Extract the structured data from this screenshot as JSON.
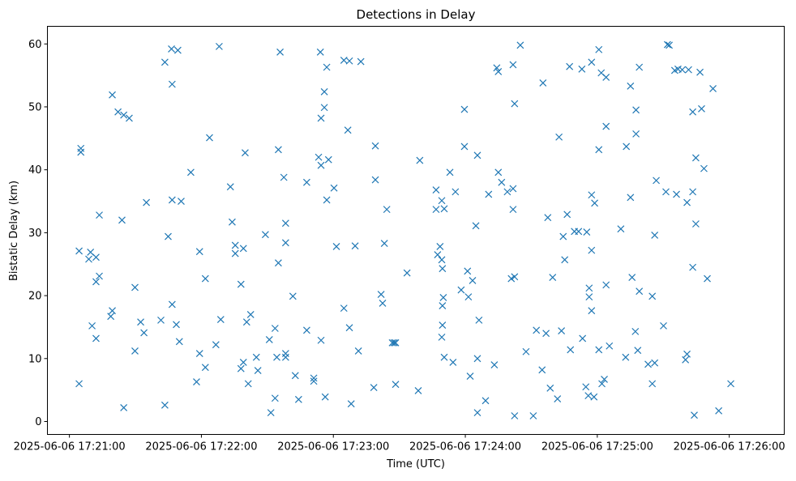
{
  "chart_data": {
    "type": "scatter",
    "title": "Detections in Delay",
    "xlabel": "Time (UTC)",
    "ylabel": "Bistatic Delay (km)",
    "x_units": "seconds after 2025-06-06 17:21:00",
    "xlim": [
      -10,
      325
    ],
    "ylim": [
      -2.06,
      62.8
    ],
    "grid": false,
    "marker": "x",
    "color": "#1f77b4",
    "x_ticks": [
      {
        "value": 0,
        "label": "2025-06-06 17:21:00"
      },
      {
        "value": 60,
        "label": "2025-06-06 17:22:00"
      },
      {
        "value": 120,
        "label": "2025-06-06 17:23:00"
      },
      {
        "value": 180,
        "label": "2025-06-06 17:24:00"
      },
      {
        "value": 240,
        "label": "2025-06-06 17:25:00"
      },
      {
        "value": 300,
        "label": "2025-06-06 17:26:00"
      }
    ],
    "y_ticks": [
      {
        "value": 0,
        "label": "0"
      },
      {
        "value": 10,
        "label": "10"
      },
      {
        "value": 20,
        "label": "20"
      },
      {
        "value": 30,
        "label": "30"
      },
      {
        "value": 40,
        "label": "40"
      },
      {
        "value": 50,
        "label": "50"
      },
      {
        "value": 60,
        "label": "60"
      }
    ],
    "points": [
      [
        4.4,
        6.0
      ],
      [
        4.4,
        27.1
      ],
      [
        5.2,
        43.4
      ],
      [
        5.2,
        42.8
      ],
      [
        8.8,
        25.8
      ],
      [
        9.6,
        26.9
      ],
      [
        10.3,
        15.2
      ],
      [
        12.1,
        26.1
      ],
      [
        12.1,
        22.2
      ],
      [
        12.1,
        13.2
      ],
      [
        13.6,
        23.1
      ],
      [
        13.6,
        32.8
      ],
      [
        18.8,
        16.7
      ],
      [
        19.5,
        17.6
      ],
      [
        19.5,
        51.9
      ],
      [
        22.1,
        49.2
      ],
      [
        24.7,
        48.7
      ],
      [
        27.2,
        48.2
      ],
      [
        23.9,
        32.0
      ],
      [
        24.7,
        2.2
      ],
      [
        29.8,
        21.3
      ],
      [
        29.8,
        11.2
      ],
      [
        32.4,
        15.8
      ],
      [
        33.9,
        14.1
      ],
      [
        35.0,
        34.8
      ],
      [
        41.6,
        16.1
      ],
      [
        43.4,
        2.6
      ],
      [
        43.4,
        57.1
      ],
      [
        44.9,
        29.4
      ],
      [
        46.4,
        59.2
      ],
      [
        46.7,
        53.6
      ],
      [
        46.7,
        35.2
      ],
      [
        46.7,
        18.6
      ],
      [
        48.6,
        15.4
      ],
      [
        49.3,
        59.0
      ],
      [
        50.0,
        12.7
      ],
      [
        50.8,
        35.0
      ],
      [
        55.2,
        39.6
      ],
      [
        57.8,
        6.3
      ],
      [
        59.2,
        27.0
      ],
      [
        59.2,
        10.8
      ],
      [
        61.8,
        22.7
      ],
      [
        61.8,
        8.6
      ],
      [
        63.7,
        45.1
      ],
      [
        66.6,
        12.2
      ],
      [
        68.1,
        59.6
      ],
      [
        68.8,
        16.2
      ],
      [
        73.2,
        37.3
      ],
      [
        74.0,
        31.7
      ],
      [
        75.4,
        28.0
      ],
      [
        75.4,
        26.7
      ],
      [
        78.0,
        21.8
      ],
      [
        79.1,
        27.5
      ],
      [
        79.9,
        42.7
      ],
      [
        78.0,
        8.4
      ],
      [
        79.1,
        9.4
      ],
      [
        80.6,
        15.8
      ],
      [
        81.3,
        6.0
      ],
      [
        82.4,
        17.0
      ],
      [
        85.0,
        10.2
      ],
      [
        85.7,
        8.1
      ],
      [
        89.1,
        29.7
      ],
      [
        90.9,
        13.0
      ],
      [
        91.6,
        1.4
      ],
      [
        93.5,
        3.7
      ],
      [
        93.5,
        14.8
      ],
      [
        94.3,
        10.2
      ],
      [
        95.0,
        25.2
      ],
      [
        95.0,
        43.2
      ],
      [
        95.8,
        58.7
      ],
      [
        97.5,
        38.8
      ],
      [
        98.3,
        10.8
      ],
      [
        98.3,
        10.2
      ],
      [
        98.3,
        31.5
      ],
      [
        98.3,
        28.4
      ],
      [
        101.6,
        19.9
      ],
      [
        102.7,
        7.3
      ],
      [
        104.2,
        3.5
      ],
      [
        107.9,
        38.0
      ],
      [
        107.9,
        14.5
      ],
      [
        111.1,
        6.9
      ],
      [
        111.1,
        6.4
      ],
      [
        113.3,
        42.0
      ],
      [
        114.1,
        58.7
      ],
      [
        114.4,
        48.2
      ],
      [
        114.4,
        40.7
      ],
      [
        114.4,
        12.9
      ],
      [
        115.9,
        52.4
      ],
      [
        115.9,
        49.9
      ],
      [
        116.3,
        3.9
      ],
      [
        117.0,
        56.3
      ],
      [
        117.0,
        35.2
      ],
      [
        117.8,
        41.6
      ],
      [
        120.3,
        37.1
      ],
      [
        121.4,
        27.8
      ],
      [
        124.8,
        18.0
      ],
      [
        124.8,
        57.4
      ],
      [
        127.3,
        57.3
      ],
      [
        126.6,
        46.3
      ],
      [
        127.3,
        14.9
      ],
      [
        128.1,
        2.8
      ],
      [
        129.9,
        27.9
      ],
      [
        131.4,
        11.2
      ],
      [
        132.5,
        57.2
      ],
      [
        138.4,
        5.4
      ],
      [
        139.1,
        43.8
      ],
      [
        139.1,
        38.4
      ],
      [
        141.7,
        20.2
      ],
      [
        142.4,
        18.8
      ],
      [
        143.2,
        28.3
      ],
      [
        144.3,
        33.7
      ],
      [
        146.8,
        12.5
      ],
      [
        147.6,
        12.5
      ],
      [
        148.3,
        12.5
      ],
      [
        148.3,
        5.9
      ],
      [
        153.5,
        23.6
      ],
      [
        158.6,
        4.9
      ],
      [
        159.3,
        41.5
      ],
      [
        166.7,
        36.8
      ],
      [
        166.7,
        33.7
      ],
      [
        167.4,
        26.5
      ],
      [
        168.5,
        27.8
      ],
      [
        169.3,
        25.7
      ],
      [
        169.3,
        35.1
      ],
      [
        170.4,
        33.8
      ],
      [
        169.6,
        24.3
      ],
      [
        169.6,
        18.4
      ],
      [
        170.0,
        19.7
      ],
      [
        169.6,
        15.3
      ],
      [
        169.3,
        13.4
      ],
      [
        170.4,
        10.2
      ],
      [
        173.0,
        39.6
      ],
      [
        174.4,
        9.4
      ],
      [
        175.5,
        36.5
      ],
      [
        178.1,
        20.9
      ],
      [
        179.6,
        49.6
      ],
      [
        179.6,
        43.7
      ],
      [
        181.0,
        23.9
      ],
      [
        181.4,
        19.8
      ],
      [
        182.2,
        7.2
      ],
      [
        183.3,
        22.4
      ],
      [
        184.8,
        31.1
      ],
      [
        185.5,
        42.3
      ],
      [
        185.5,
        10.0
      ],
      [
        185.5,
        1.4
      ],
      [
        186.2,
        16.1
      ],
      [
        189.2,
        3.3
      ],
      [
        190.6,
        36.1
      ],
      [
        193.2,
        9.0
      ],
      [
        194.3,
        56.2
      ],
      [
        195.0,
        55.6
      ],
      [
        195.0,
        39.6
      ],
      [
        196.5,
        38.0
      ],
      [
        199.1,
        36.5
      ],
      [
        201.7,
        37.0
      ],
      [
        201.7,
        56.7
      ],
      [
        201.7,
        33.7
      ],
      [
        200.9,
        22.7
      ],
      [
        202.4,
        23.0
      ],
      [
        202.4,
        50.5
      ],
      [
        202.4,
        0.9
      ],
      [
        205.0,
        59.8
      ],
      [
        207.6,
        11.1
      ],
      [
        210.9,
        0.9
      ],
      [
        212.3,
        14.5
      ],
      [
        214.9,
        8.2
      ],
      [
        215.3,
        53.8
      ],
      [
        216.7,
        14.0
      ],
      [
        217.5,
        32.4
      ],
      [
        218.6,
        5.3
      ],
      [
        219.7,
        22.9
      ],
      [
        221.9,
        3.6
      ],
      [
        222.6,
        45.2
      ],
      [
        223.7,
        14.4
      ],
      [
        224.5,
        29.4
      ],
      [
        225.2,
        25.7
      ],
      [
        226.3,
        32.9
      ],
      [
        227.4,
        56.4
      ],
      [
        227.8,
        11.4
      ],
      [
        229.6,
        30.2
      ],
      [
        231.5,
        30.2
      ],
      [
        233.0,
        56.0
      ],
      [
        233.3,
        13.2
      ],
      [
        235.2,
        30.1
      ],
      [
        234.8,
        5.5
      ],
      [
        235.9,
        4.1
      ],
      [
        236.3,
        21.2
      ],
      [
        236.3,
        19.8
      ],
      [
        237.4,
        17.6
      ],
      [
        237.4,
        36.0
      ],
      [
        237.4,
        27.2
      ],
      [
        237.4,
        57.1
      ],
      [
        238.5,
        3.9
      ],
      [
        238.8,
        34.7
      ],
      [
        240.7,
        59.1
      ],
      [
        240.7,
        43.2
      ],
      [
        240.7,
        11.4
      ],
      [
        241.8,
        55.4
      ],
      [
        242.1,
        6.0
      ],
      [
        243.2,
        6.7
      ],
      [
        244.0,
        54.7
      ],
      [
        244.0,
        46.9
      ],
      [
        244.0,
        21.7
      ],
      [
        245.5,
        12.0
      ],
      [
        250.7,
        30.6
      ],
      [
        252.9,
        10.2
      ],
      [
        253.2,
        43.7
      ],
      [
        255.1,
        53.3
      ],
      [
        255.1,
        35.6
      ],
      [
        255.8,
        22.9
      ],
      [
        257.3,
        14.3
      ],
      [
        257.6,
        49.5
      ],
      [
        257.6,
        45.7
      ],
      [
        258.4,
        11.3
      ],
      [
        259.1,
        20.7
      ],
      [
        259.1,
        56.3
      ],
      [
        263.1,
        9.1
      ],
      [
        265.0,
        19.9
      ],
      [
        265.0,
        6.0
      ],
      [
        266.1,
        29.6
      ],
      [
        266.1,
        9.3
      ],
      [
        266.8,
        38.3
      ],
      [
        270.1,
        15.2
      ],
      [
        271.2,
        36.5
      ],
      [
        271.9,
        59.9
      ],
      [
        272.7,
        59.8
      ],
      [
        275.2,
        55.8
      ],
      [
        276.0,
        36.1
      ],
      [
        276.7,
        56.0
      ],
      [
        278.6,
        55.9
      ],
      [
        280.1,
        9.8
      ],
      [
        280.8,
        10.7
      ],
      [
        280.8,
        34.8
      ],
      [
        281.5,
        55.9
      ],
      [
        283.4,
        49.2
      ],
      [
        283.4,
        36.5
      ],
      [
        283.4,
        24.5
      ],
      [
        284.1,
        1.0
      ],
      [
        284.8,
        41.9
      ],
      [
        284.8,
        31.4
      ],
      [
        286.7,
        55.5
      ],
      [
        287.4,
        49.7
      ],
      [
        288.5,
        40.2
      ],
      [
        290.0,
        22.7
      ],
      [
        292.6,
        52.9
      ],
      [
        295.2,
        1.7
      ],
      [
        300.7,
        6.0
      ]
    ]
  }
}
